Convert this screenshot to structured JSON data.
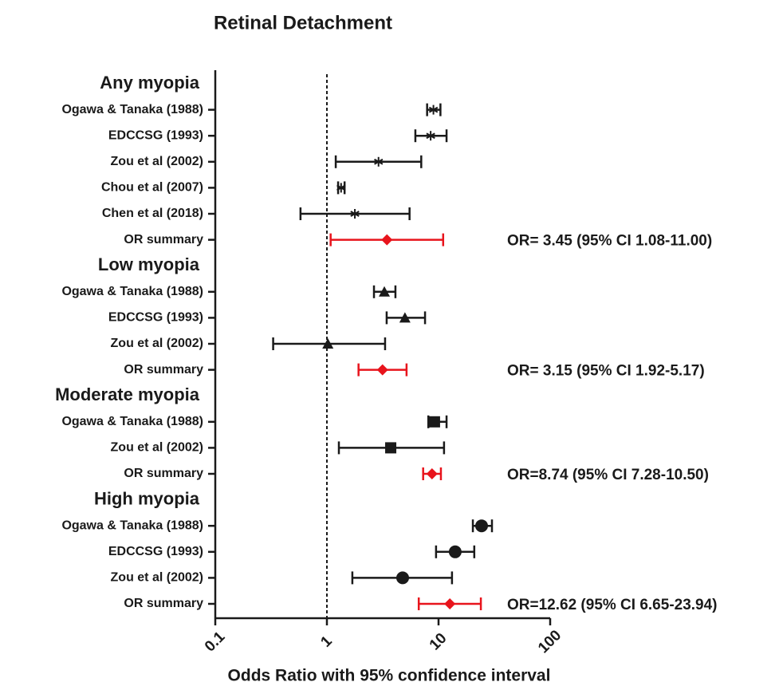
{
  "chart_data": {
    "type": "forest",
    "title": "Retinal Detachment",
    "x_label": "Odds Ratio with 95% confidence interval",
    "log_x": true,
    "xlim": [
      0.1,
      100
    ],
    "xticks": [
      0.1,
      1,
      10,
      100
    ],
    "ref_line": 1,
    "groups": [
      {
        "name": "Any myopia",
        "marker": "asterisk",
        "color": "#1a1a1a",
        "rows": [
          {
            "label": "Ogawa & Tanaka (1988)",
            "value": 9.0,
            "lower": 7.9,
            "upper": 10.4
          },
          {
            "label": "EDCCSG (1993)",
            "value": 8.5,
            "lower": 6.2,
            "upper": 11.8
          },
          {
            "label": "Zou et al (2002)",
            "value": 2.9,
            "lower": 1.2,
            "upper": 7.0
          },
          {
            "label": "Chou et al (2007)",
            "value": 1.34,
            "lower": 1.26,
            "upper": 1.44
          },
          {
            "label": "Chen et al (2018)",
            "value": 1.78,
            "lower": 0.58,
            "upper": 5.5
          }
        ],
        "summary": {
          "label": "OR summary",
          "value": 3.45,
          "lower": 1.08,
          "upper": 11.0,
          "color": "#e8141c",
          "marker": "diamond",
          "text": "OR= 3.45 (95% CI 1.08-11.00)"
        }
      },
      {
        "name": "Low myopia",
        "marker": "triangle",
        "color": "#1a1a1a",
        "rows": [
          {
            "label": "Ogawa & Tanaka (1988)",
            "value": 3.27,
            "lower": 2.64,
            "upper": 4.11
          },
          {
            "label": "EDCCSG (1993)",
            "value": 5.0,
            "lower": 3.43,
            "upper": 7.57
          },
          {
            "label": "Zou et al (2002)",
            "value": 1.02,
            "lower": 0.33,
            "upper": 3.32
          }
        ],
        "summary": {
          "label": "OR summary",
          "value": 3.15,
          "lower": 1.92,
          "upper": 5.17,
          "color": "#e8141c",
          "marker": "diamond",
          "text": "OR= 3.15 (95% CI 1.92-5.17)"
        }
      },
      {
        "name": "Moderate myopia",
        "marker": "square",
        "color": "#1a1a1a",
        "rows": [
          {
            "label": "Ogawa & Tanaka (1988)",
            "value": 9.2,
            "lower": 8.1,
            "upper": 11.8
          },
          {
            "label": "Zou et al (2002)",
            "value": 3.73,
            "lower": 1.28,
            "upper": 11.2
          }
        ],
        "summary": {
          "label": "OR summary",
          "value": 8.74,
          "lower": 7.28,
          "upper": 10.5,
          "color": "#e8141c",
          "marker": "diamond",
          "text": "OR=8.74 (95% CI 7.28-10.50)"
        }
      },
      {
        "name": "High myopia",
        "marker": "circle",
        "color": "#1a1a1a",
        "rows": [
          {
            "label": "Ogawa & Tanaka (1988)",
            "value": 24.3,
            "lower": 20.3,
            "upper": 30.1
          },
          {
            "label": "EDCCSG (1993)",
            "value": 14.1,
            "lower": 9.5,
            "upper": 20.9
          },
          {
            "label": "Zou et al (2002)",
            "value": 4.77,
            "lower": 1.69,
            "upper": 13.2
          }
        ],
        "summary": {
          "label": "OR summary",
          "value": 12.62,
          "lower": 6.65,
          "upper": 23.94,
          "color": "#e8141c",
          "marker": "diamond",
          "text": "OR=12.62 (95% CI 6.65-23.94)"
        }
      }
    ]
  }
}
